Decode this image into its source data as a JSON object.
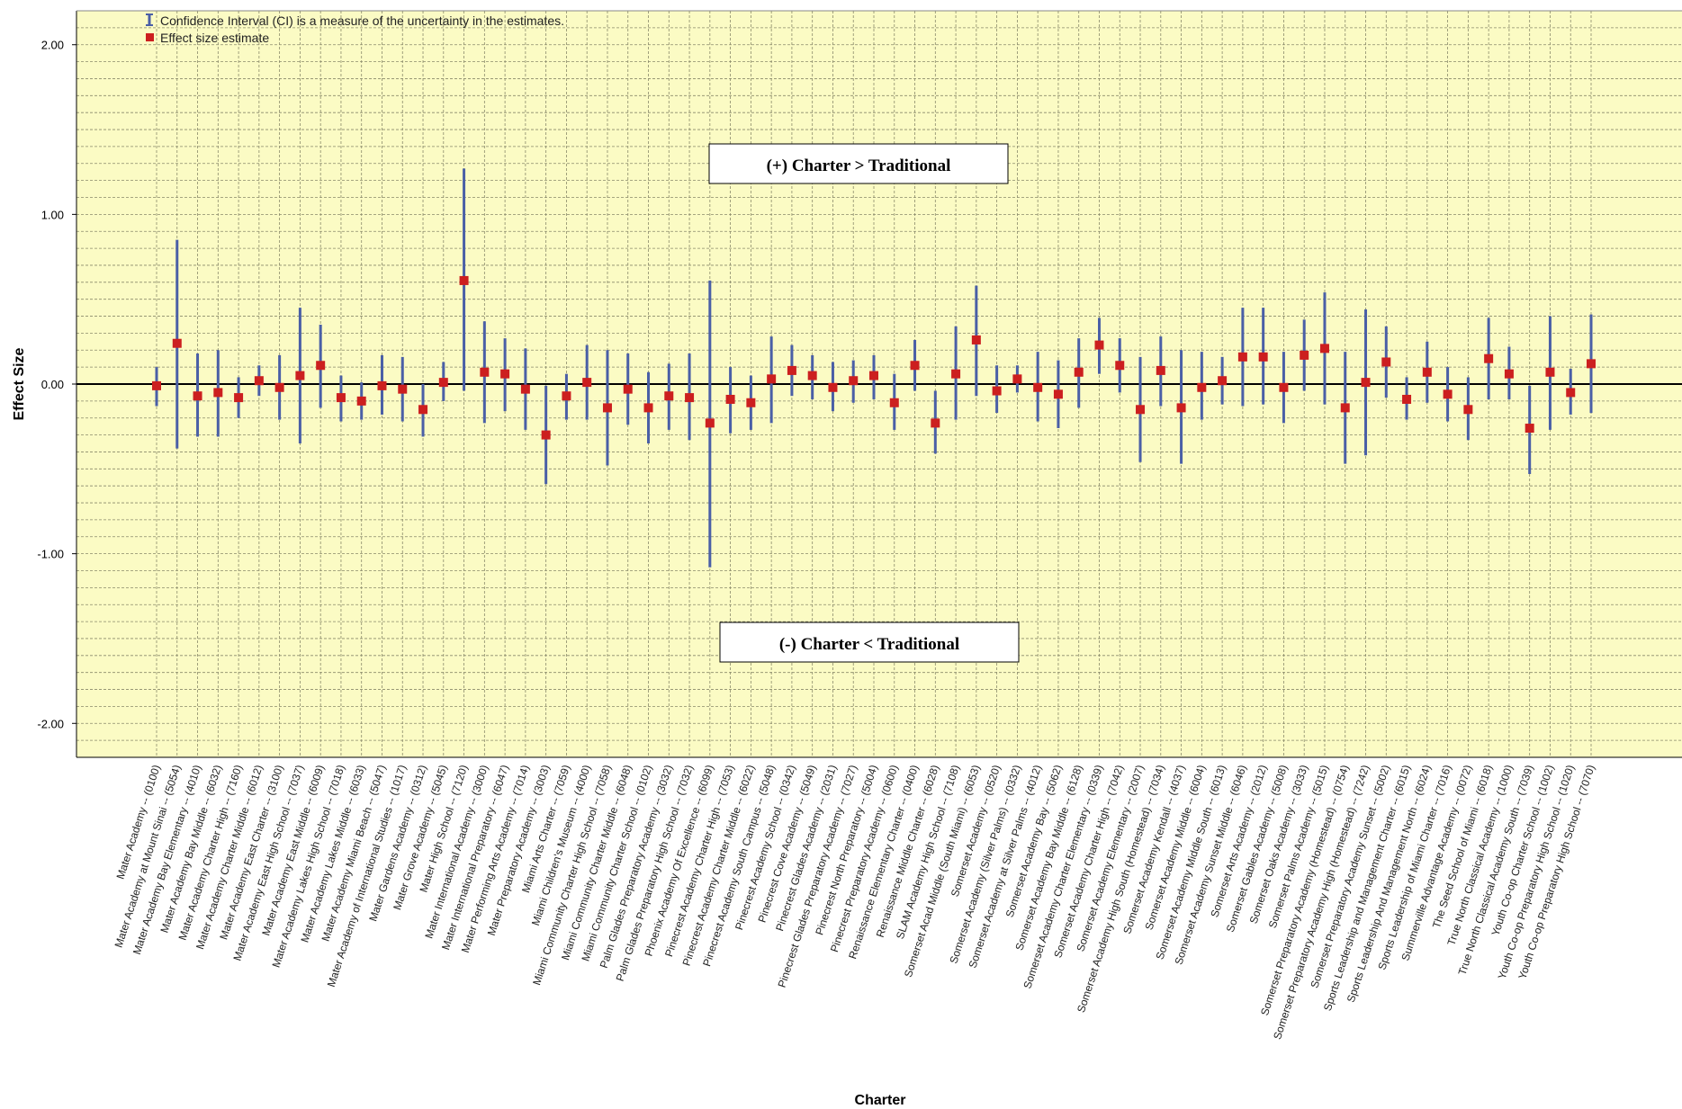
{
  "chart_data": {
    "type": "scatter",
    "xlabel": "Charter",
    "ylabel": "Effect Size",
    "ylim": [
      -2.2,
      2.2
    ],
    "yticks": [
      2.0,
      1.0,
      0.0,
      -1.0,
      -2.0
    ],
    "ytick_labels": [
      "2.00",
      "1.00",
      "0.00",
      "-1.00",
      "-2.00"
    ],
    "grid": true,
    "background_color": "#fbfbc4",
    "ci_color": "#4a5fa6",
    "estimate_color": "#cc1f1f",
    "zero_line": true,
    "legend": {
      "position": "top-left",
      "ci_label": "Confidence Interval (CI) is a measure of the uncertainty in the estimates.",
      "estimate_label": "Effect size estimate"
    },
    "annotations": {
      "positive": "(+) Charter > Traditional",
      "negative": "(-) Charter < Traditional"
    },
    "categories": [
      "Mater Academy -- (0100)",
      "Mater Academy at Mount Sinai -- (5054)",
      "Mater Academy Bay Elementary -- (4010)",
      "Mater Academy Bay Middle -- (6032)",
      "Mater Academy Charter High -- (7160)",
      "Mater Academy Charter Middle -- (6012)",
      "Mater Academy East Charter -- (3100)",
      "Mater Academy East High School -- (7037)",
      "Mater Academy East Middle -- (6009)",
      "Mater Academy Lakes High School -- (7018)",
      "Mater Academy Lakes Middle -- (6033)",
      "Mater Academy Miami Beach -- (5047)",
      "Mater Academy of International Studies -- (1017)",
      "Mater Gardens Academy -- (0312)",
      "Mater Grove Academy -- (5045)",
      "Mater High School -- (7120)",
      "Mater International Academy -- (3000)",
      "Mater International Preparatory -- (6047)",
      "Mater Performing Arts Academy -- (7014)",
      "Mater Preparatory Academy -- (3003)",
      "Miami Arts Charter -- (7059)",
      "Miami Children's Museum -- (4000)",
      "Miami Community Charter High School -- (7058)",
      "Miami Community Charter Middle -- (6048)",
      "Miami Community Charter School -- (0102)",
      "Palm Glades Preparatory Academy -- (3032)",
      "Palm Glades Preparatory High School -- (7032)",
      "Phoenix Academy Of Excellence -- (6099)",
      "Pinecrest Academy Charter High -- (7053)",
      "Pinecrest Academy Charter Middle -- (6022)",
      "Pinecrest Academy South Campus -- (5048)",
      "Pinecrest Academy School -- (0342)",
      "Pinecrest Cove Academy -- (5049)",
      "Pinecrest Glades Academy -- (2031)",
      "Pinecrest Glades Preparatory Academy -- (7027)",
      "Pinecrest North Preparatory -- (5004)",
      "Pinecrest Preparatory Academy -- (0600)",
      "Renaissance Elementary Charter -- (0400)",
      "Renaissance Middle Charter -- (6028)",
      "SLAM Academy High School -- (7108)",
      "Somerset Acad Middle (South Miami) -- (6053)",
      "Somerset Academy -- (0520)",
      "Somerset Academy (Silver Palms) -- (0332)",
      "Somerset Academy at Silver Palms -- (4012)",
      "Somerset Academy Bay -- (5062)",
      "Somerset Academy Bay Middle -- (6128)",
      "Somerset Academy Charter Elementary -- (0339)",
      "Somerset Academy Charter High -- (7042)",
      "Somerset Academy Elementary -- (2007)",
      "Somerset Academy High South (Homestead) -- (7034)",
      "Somerset Academy Kendall -- (4037)",
      "Somerset Academy Middle -- (6004)",
      "Somerset Academy Middle South -- (6013)",
      "Somerset Academy Sunset Middle -- (6046)",
      "Somerset Arts Academy -- (2012)",
      "Somerset Gables Academy -- (5008)",
      "Somerset Oaks Academy -- (3033)",
      "Somerset Palms Academy -- (5015)",
      "Somerset Preparatory Academy (Homestead) -- (0754)",
      "Somerset Preparatory Academy High (Homestead) -- (7242)",
      "Somerset Preparatory Academy Sunset -- (5002)",
      "Sports Leadership and Management Charter -- (6015)",
      "Sports Leadership And Management North -- (6024)",
      "Sports Leadership of Miami Charter -- (7016)",
      "Summerville Advantage Academy -- (0072)",
      "The Seed School of Miami -- (6018)",
      "True North Classical Academy -- (1000)",
      "True North Classical Academy South -- (7039)",
      "Youth Co-op Charter School -- (1002)",
      "Youth Co-op Preparatory High School -- (1020)",
      "Youth Co-op Preparatory High School -- (7070)"
    ],
    "estimates": [
      -0.01,
      0.24,
      -0.07,
      -0.05,
      -0.08,
      0.02,
      -0.02,
      0.05,
      0.11,
      -0.08,
      -0.1,
      -0.01,
      -0.03,
      -0.15,
      0.01,
      0.61,
      0.07,
      0.06,
      -0.03,
      -0.3,
      -0.07,
      0.01,
      -0.14,
      -0.03,
      -0.14,
      -0.07,
      -0.08,
      -0.23,
      -0.09,
      -0.11,
      0.03,
      0.08,
      0.05,
      -0.02,
      0.02,
      0.05,
      -0.11,
      0.11,
      -0.23,
      0.06,
      0.26,
      -0.04,
      0.03,
      -0.02,
      -0.06,
      0.07,
      0.23,
      0.11,
      -0.15,
      0.08,
      -0.14,
      -0.02,
      0.02,
      0.16,
      0.16,
      -0.02,
      0.17,
      0.21,
      -0.14,
      0.01,
      0.13,
      -0.09,
      0.07,
      -0.06,
      -0.15,
      0.15,
      0.06,
      -0.26,
      0.07,
      -0.05,
      0.12
    ],
    "ci_lower": [
      -0.13,
      -0.38,
      -0.31,
      -0.31,
      -0.2,
      -0.07,
      -0.21,
      -0.35,
      -0.14,
      -0.22,
      -0.21,
      -0.18,
      -0.22,
      -0.31,
      -0.1,
      -0.04,
      -0.23,
      -0.16,
      -0.27,
      -0.59,
      -0.21,
      -0.21,
      -0.48,
      -0.24,
      -0.35,
      -0.27,
      -0.33,
      -1.08,
      -0.29,
      -0.27,
      -0.23,
      -0.07,
      -0.09,
      -0.16,
      -0.11,
      -0.09,
      -0.27,
      -0.04,
      -0.41,
      -0.21,
      -0.07,
      -0.17,
      -0.05,
      -0.22,
      -0.26,
      -0.14,
      0.06,
      -0.05,
      -0.46,
      -0.13,
      -0.47,
      -0.21,
      -0.12,
      -0.13,
      -0.12,
      -0.23,
      -0.04,
      -0.12,
      -0.47,
      -0.42,
      -0.08,
      -0.21,
      -0.11,
      -0.22,
      -0.33,
      -0.09,
      -0.09,
      -0.53,
      -0.27,
      -0.18,
      -0.17
    ],
    "ci_upper": [
      0.1,
      0.85,
      0.18,
      0.2,
      0.04,
      0.11,
      0.17,
      0.45,
      0.35,
      0.05,
      0.01,
      0.17,
      0.16,
      0.0,
      0.13,
      1.27,
      0.37,
      0.27,
      0.21,
      -0.01,
      0.06,
      0.23,
      0.2,
      0.18,
      0.07,
      0.12,
      0.18,
      0.61,
      0.1,
      0.05,
      0.28,
      0.23,
      0.17,
      0.13,
      0.14,
      0.17,
      0.06,
      0.26,
      -0.04,
      0.34,
      0.58,
      0.11,
      0.11,
      0.19,
      0.14,
      0.27,
      0.39,
      0.27,
      0.16,
      0.28,
      0.2,
      0.19,
      0.16,
      0.45,
      0.45,
      0.19,
      0.38,
      0.54,
      0.19,
      0.44,
      0.34,
      0.04,
      0.25,
      0.1,
      0.04,
      0.39,
      0.22,
      -0.01,
      0.4,
      0.09,
      0.41
    ]
  }
}
